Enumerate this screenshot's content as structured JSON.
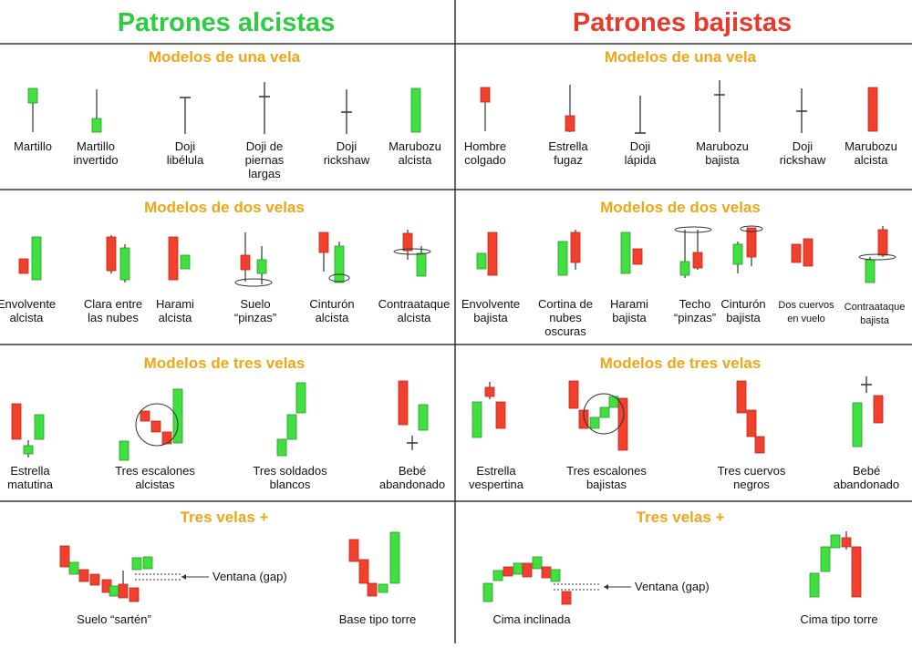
{
  "columns": [
    {
      "title": "Patrones alcistas",
      "sections": [
        {
          "title": "Modelos de una vela",
          "items": [
            [
              "Martillo"
            ],
            [
              "Martillo",
              "invertido"
            ],
            [
              "Doji",
              "libélula"
            ],
            [
              "Doji de",
              "piernas",
              "largas"
            ],
            [
              "Doji",
              "rickshaw"
            ],
            [
              "Marubozu",
              "alcista"
            ]
          ]
        },
        {
          "title": "Modelos de dos velas",
          "items": [
            [
              "Envolvente",
              "alcista"
            ],
            [
              "Clara entre",
              "las nubes"
            ],
            [
              "Harami",
              "alcista"
            ],
            [
              "Suelo",
              "“pinzas”"
            ],
            [
              "Cinturón",
              "alcista"
            ],
            [
              "Contraataque",
              "alcista"
            ]
          ]
        },
        {
          "title": "Modelos de tres velas",
          "items": [
            [
              "Estrella",
              "matutina"
            ],
            [
              "Tres escalones",
              "alcistas"
            ],
            [
              "Tres soldados",
              "blancos"
            ],
            [
              "Bebé",
              "abandonado"
            ]
          ]
        },
        {
          "title": "Tres velas +",
          "items": [
            [
              "Suelo “sartén”"
            ],
            [
              "Base tipo torre"
            ]
          ],
          "annotation": "Ventana (gap)"
        }
      ]
    },
    {
      "title": "Patrones bajistas",
      "sections": [
        {
          "title": "Modelos de una vela",
          "items": [
            [
              "Hombre",
              "colgado"
            ],
            [
              "Estrella",
              "fugaz"
            ],
            [
              "Doji",
              "lápida"
            ],
            [
              "Marubozu",
              "bajista"
            ],
            [
              "Doji",
              "rickshaw"
            ],
            [
              "Marubozu",
              "alcista"
            ]
          ]
        },
        {
          "title": "Modelos de dos velas",
          "items": [
            [
              "Envolvente",
              "bajista"
            ],
            [
              "Cortina de",
              "nubes",
              "oscuras"
            ],
            [
              "Harami",
              "bajista"
            ],
            [
              "Techo",
              "“pinzas”"
            ],
            [
              "Cinturón",
              "bajista"
            ],
            [
              "Dos cuervos",
              "en vuelo"
            ],
            [
              "Contraataque",
              "bajista"
            ]
          ]
        },
        {
          "title": "Modelos de tres velas",
          "items": [
            [
              "Estrella",
              "vespertina"
            ],
            [
              "Tres escalones",
              "bajistas"
            ],
            [
              "Tres cuervos",
              "negros"
            ],
            [
              "Bebé",
              "abandonado"
            ]
          ]
        },
        {
          "title": "Tres velas +",
          "items": [
            [
              "Cima inclinada"
            ],
            [
              "Cima tipo torre"
            ]
          ],
          "annotation": "Ventana (gap)"
        }
      ]
    }
  ]
}
